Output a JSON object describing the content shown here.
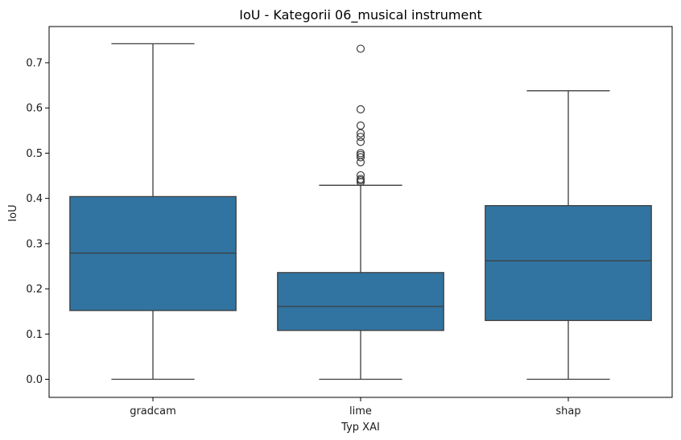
{
  "chart_data": {
    "type": "box",
    "title": "IoU - Kategorii 06_musical instrument",
    "xlabel": "Typ XAI",
    "ylabel": "IoU",
    "categories": [
      "gradcam",
      "lime",
      "shap"
    ],
    "ylim": [
      -0.04,
      0.78
    ],
    "yticks": [
      0.0,
      0.1,
      0.2,
      0.3,
      0.4,
      0.5,
      0.6,
      0.7
    ],
    "ytick_labels": [
      "0.0",
      "0.1",
      "0.2",
      "0.3",
      "0.4",
      "0.5",
      "0.6",
      "0.7"
    ],
    "boxes": [
      {
        "category": "gradcam",
        "whisker_low": 0.0,
        "q1": 0.152,
        "median": 0.279,
        "q3": 0.404,
        "whisker_high": 0.742,
        "outliers": []
      },
      {
        "category": "lime",
        "whisker_low": 0.0,
        "q1": 0.108,
        "median": 0.161,
        "q3": 0.236,
        "whisker_high": 0.429,
        "outliers": [
          0.731,
          0.597,
          0.561,
          0.544,
          0.536,
          0.525,
          0.5,
          0.496,
          0.491,
          0.48,
          0.451,
          0.443,
          0.44,
          0.436
        ]
      },
      {
        "category": "shap",
        "whisker_low": 0.0,
        "q1": 0.13,
        "median": 0.262,
        "q3": 0.384,
        "whisker_high": 0.638,
        "outliers": []
      }
    ],
    "color": "#3274a1",
    "edge_color": "#3d3d3d",
    "grid": false,
    "legend": "none"
  }
}
